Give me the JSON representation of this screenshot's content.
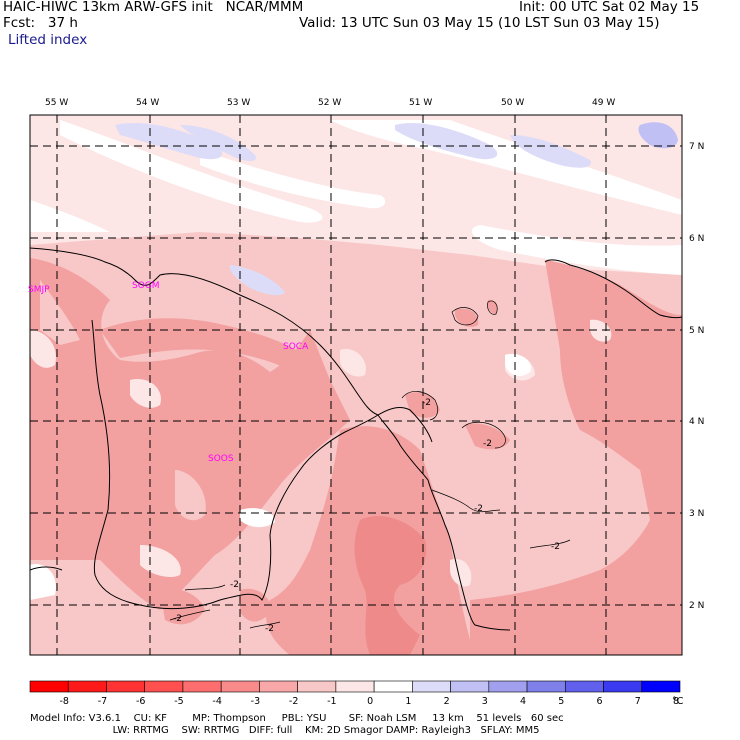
{
  "header": {
    "model_title": "HAIC-HIWC 13km ARW-GFS init   NCAR/MMM",
    "forecast": "Fcst:   37 h",
    "field_name": "Lifted index",
    "init": "Init: 00 UTC Sat 02 May 15",
    "valid": "Valid: 13 UTC Sun 03 May 15 (10 LST Sun 03 May 15)"
  },
  "map": {
    "lon_labels": [
      "55 W",
      "54 W",
      "53 W",
      "52 W",
      "51 W",
      "50 W",
      "49 W"
    ],
    "lat_labels": [
      "7 N",
      "6 N",
      "5 N",
      "4 N",
      "3 N",
      "2 N"
    ],
    "stations": [
      "SMJP",
      "SOGM",
      "SOCA",
      "SOOS"
    ],
    "contour_labels": [
      "-2",
      "-2",
      "-2",
      "-2",
      "-2",
      "-2",
      "-2"
    ]
  },
  "colorbar": {
    "tick_labels": [
      "-8",
      "-7",
      "-6",
      "-5",
      "-4",
      "-3",
      "-2",
      "-1",
      "0",
      "1",
      "2",
      "3",
      "4",
      "5",
      "6",
      "7",
      "8"
    ],
    "unit": "°C",
    "colors": [
      "#ff0000",
      "#ff1a1a",
      "#ff3333",
      "#ff5050",
      "#ff6e6e",
      "#f88a8a",
      "#f8a8a8",
      "#f8c8c8",
      "#fce6e6",
      "#ffffff",
      "#dcdcf8",
      "#c0c0f4",
      "#a0a0ee",
      "#8080ea",
      "#6060ec",
      "#3a3af0",
      "#0000ff"
    ]
  },
  "footer": {
    "line1": "Model Info: V3.6.1    CU: KF        MP: Thompson     PBL: YSU       SF: Noah LSM     13 km    51 levels   60 sec",
    "line2": "                          LW: RRTMG    SW: RRTMG   DIFF: full    KM: 2D Smagor DAMP: Rayleigh3   SFLAY: MM5"
  }
}
